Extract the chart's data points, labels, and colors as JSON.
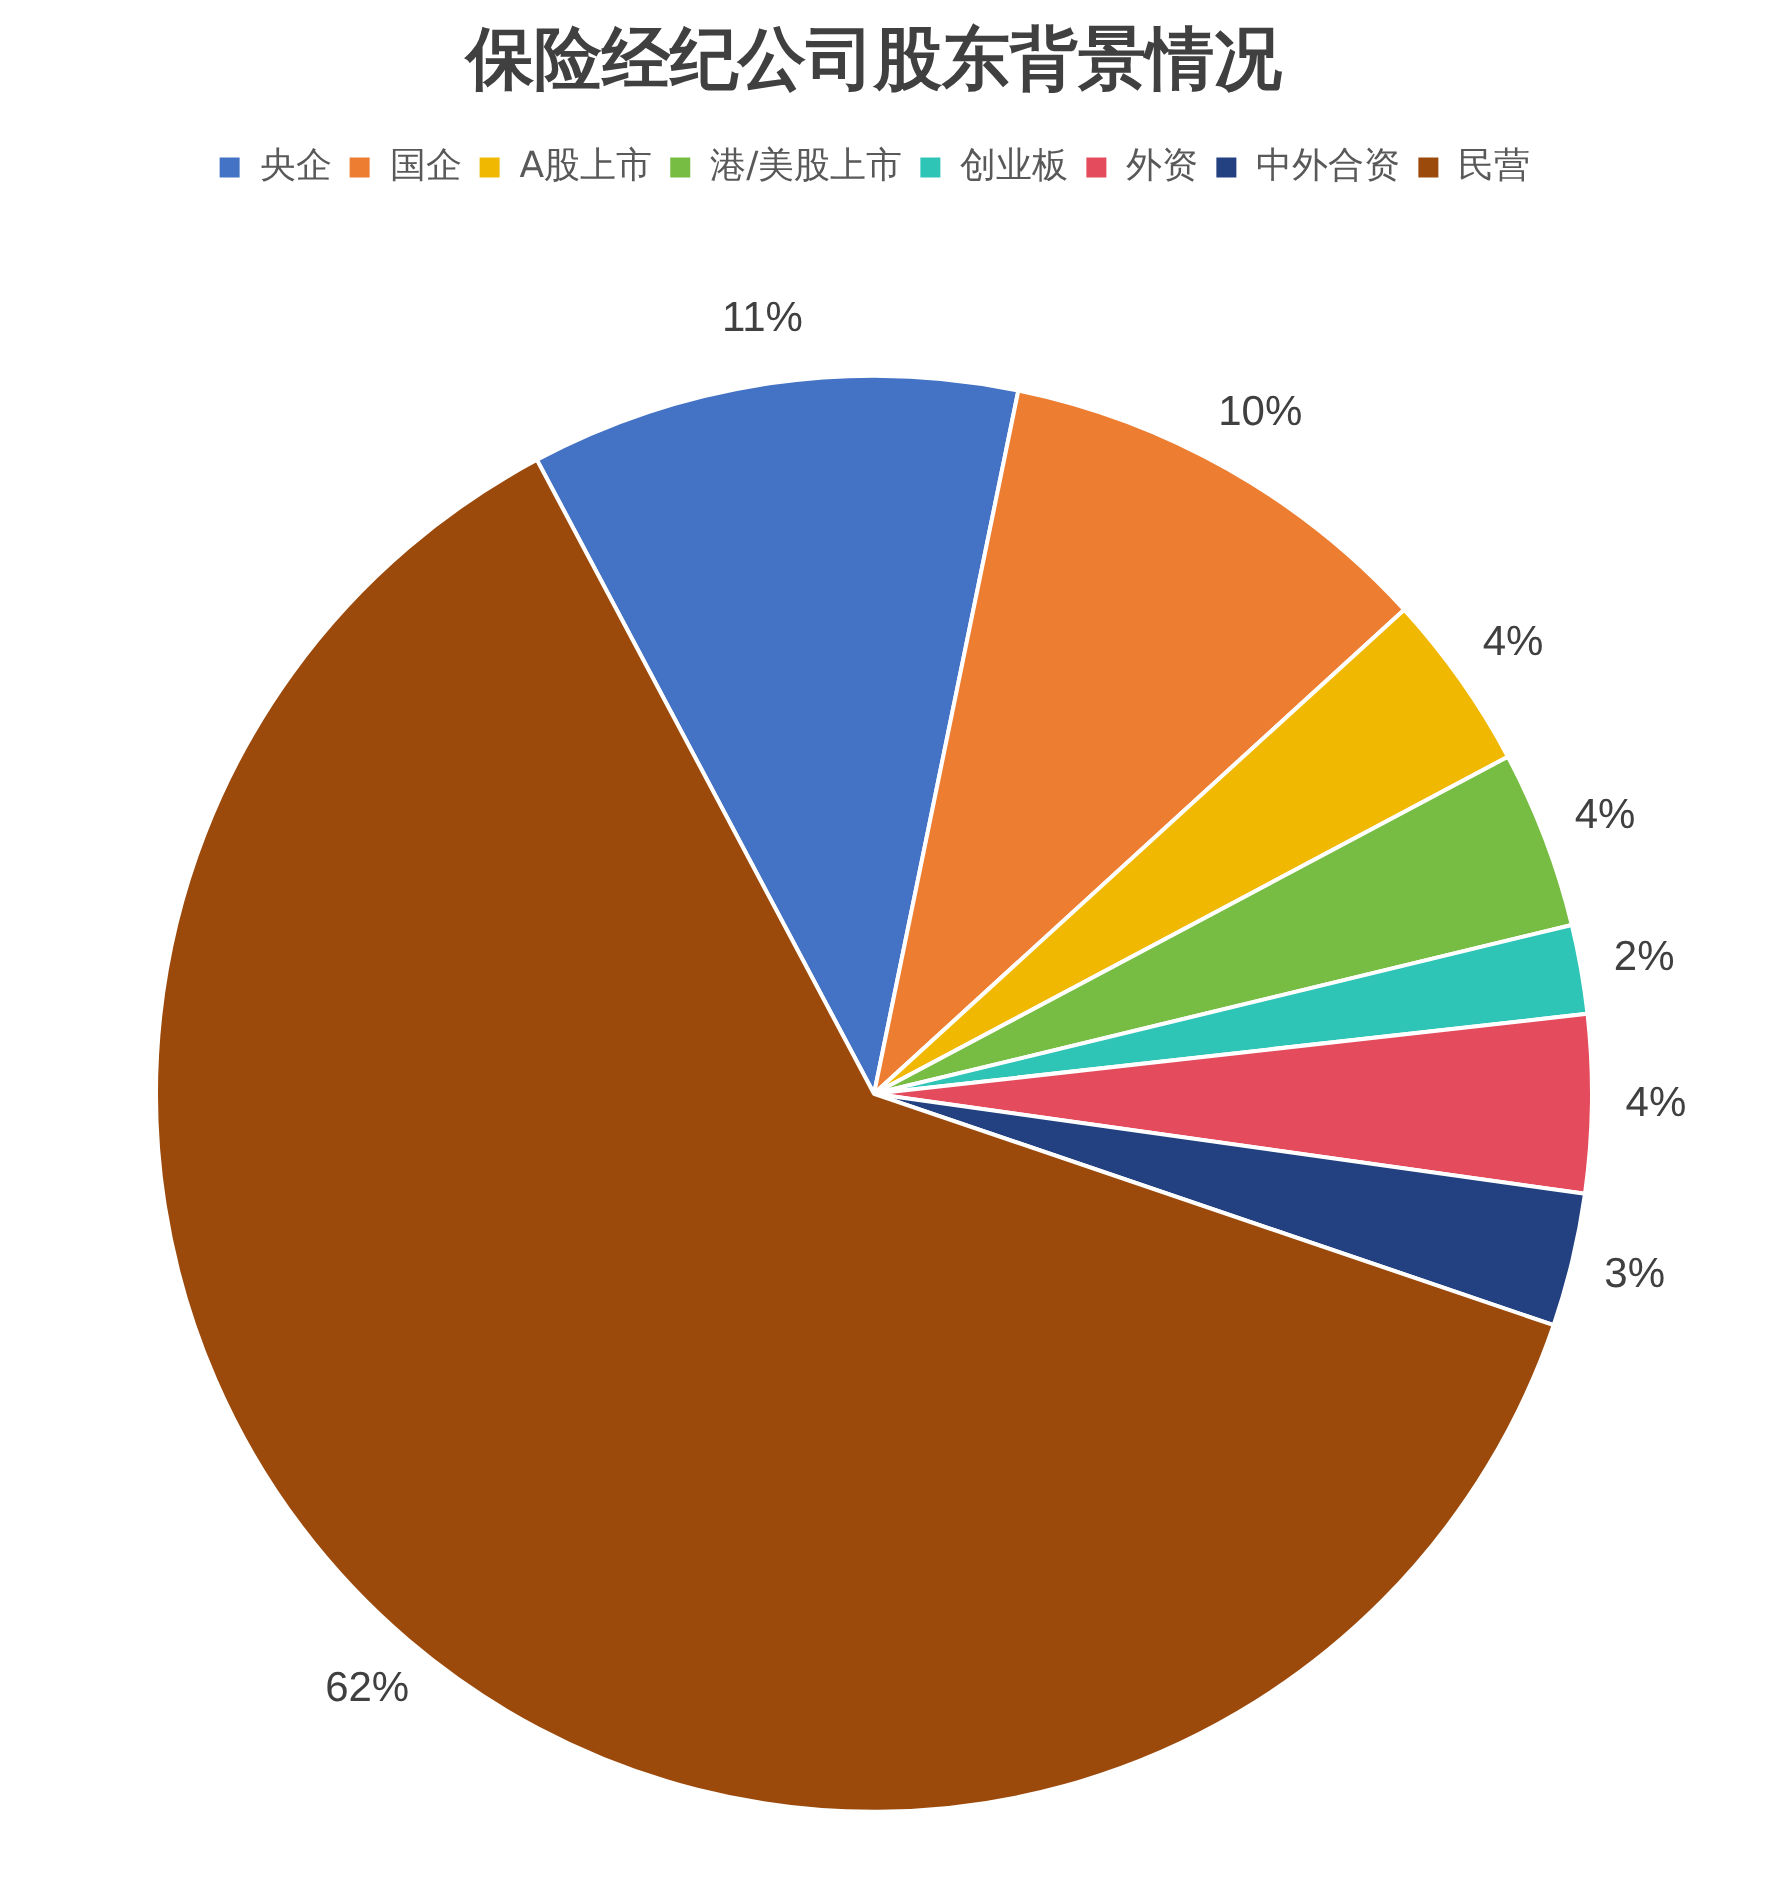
{
  "chart_data": {
    "type": "pie",
    "title": "保险经纪公司股东背景情况",
    "categories": [
      "央企",
      "国企",
      "A股上市",
      "港/美股上市",
      "创业板",
      "外资",
      "中外合资",
      "民营"
    ],
    "values": [
      11,
      10,
      4,
      4,
      2,
      4,
      3,
      62
    ],
    "colors": [
      "#4472c4",
      "#ed7d31",
      "#f0b800",
      "#77bc43",
      "#2ec4b6",
      "#e44c5e",
      "#234180",
      "#9c4a0c"
    ],
    "value_labels": [
      "11%",
      "10%",
      "4%",
      "4%",
      "2%",
      "4%",
      "3%",
      "62%"
    ],
    "legend": "top"
  }
}
